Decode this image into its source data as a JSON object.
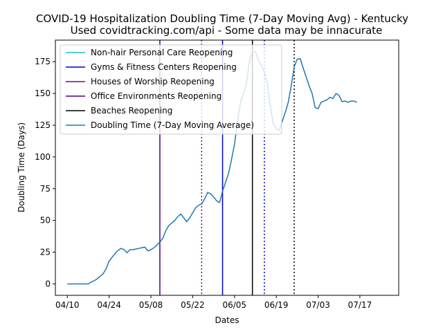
{
  "chart_data": {
    "type": "line",
    "title": "COVID-19 Hospitalization Doubling Time (7-Day Moving Avg) - Kentucky",
    "subtitle": "Used covidtracking.com/api - Some data may be innacurate",
    "xlabel": "Dates",
    "ylabel": "Doubling Time (Days)",
    "xlim": [
      "2020-04-06",
      "2020-07-30"
    ],
    "ylim": [
      -9,
      192
    ],
    "x_ticks": [
      "04/10",
      "04/24",
      "05/08",
      "05/22",
      "06/05",
      "06/19",
      "07/03",
      "07/17"
    ],
    "x_tick_dates": [
      "2020-04-10",
      "2020-04-24",
      "2020-05-08",
      "2020-05-22",
      "2020-06-05",
      "2020-06-19",
      "2020-07-03",
      "2020-07-17"
    ],
    "y_ticks": [
      0,
      25,
      50,
      75,
      100,
      125,
      150,
      175
    ],
    "grid": false,
    "legend_position": "upper-left",
    "legend": [
      {
        "label": "Non-hair Personal Care Reopening",
        "color": "#17becf",
        "style": "solid"
      },
      {
        "label": "Gyms & Fitness Centers Reopening",
        "color": "#0000cd",
        "style": "solid"
      },
      {
        "label": "Houses of Worship Reopening",
        "color": "#800080",
        "style": "solid"
      },
      {
        "label": "Office Environments Reopening",
        "color": "#4b0082",
        "style": "solid"
      },
      {
        "label": "Beaches Reopening",
        "color": "#000000",
        "style": "solid"
      },
      {
        "label": "Doubling Time (7-Day Moving Average)",
        "color": "#1f77b4",
        "style": "solid"
      }
    ],
    "vlines": [
      {
        "date": "2020-05-11",
        "color": "#4b0082",
        "style": "solid"
      },
      {
        "date": "2020-05-25",
        "color": "#800080",
        "style": "dotted"
      },
      {
        "date": "2020-06-01",
        "color": "#0000cd",
        "style": "solid"
      },
      {
        "date": "2020-06-11",
        "color": "#000000",
        "style": "solid"
      },
      {
        "date": "2020-06-15",
        "color": "#0000cd",
        "style": "dotted"
      },
      {
        "date": "2020-06-25",
        "color": "#000000",
        "style": "dotted"
      }
    ],
    "series": [
      {
        "name": "Doubling Time (7-Day Moving Average)",
        "color": "#1f77b4",
        "points": [
          [
            "2020-04-10",
            0
          ],
          [
            "2020-04-11",
            0
          ],
          [
            "2020-04-12",
            0
          ],
          [
            "2020-04-13",
            0
          ],
          [
            "2020-04-14",
            0
          ],
          [
            "2020-04-15",
            0
          ],
          [
            "2020-04-16",
            0
          ],
          [
            "2020-04-17",
            0
          ],
          [
            "2020-04-18",
            1.5
          ],
          [
            "2020-04-19",
            2.5
          ],
          [
            "2020-04-20",
            4
          ],
          [
            "2020-04-21",
            6
          ],
          [
            "2020-04-22",
            8
          ],
          [
            "2020-04-23",
            12
          ],
          [
            "2020-04-24",
            18
          ],
          [
            "2020-04-25",
            21
          ],
          [
            "2020-04-26",
            24
          ],
          [
            "2020-04-27",
            26.5
          ],
          [
            "2020-04-28",
            28
          ],
          [
            "2020-04-29",
            27
          ],
          [
            "2020-04-30",
            24.5
          ],
          [
            "2020-05-01",
            27
          ],
          [
            "2020-05-02",
            27
          ],
          [
            "2020-05-03",
            27.5
          ],
          [
            "2020-05-04",
            28
          ],
          [
            "2020-05-05",
            28.5
          ],
          [
            "2020-05-06",
            29
          ],
          [
            "2020-05-07",
            26
          ],
          [
            "2020-05-08",
            27
          ],
          [
            "2020-05-09",
            28.5
          ],
          [
            "2020-05-10",
            30.5
          ],
          [
            "2020-05-11",
            33
          ],
          [
            "2020-05-12",
            36
          ],
          [
            "2020-05-13",
            42
          ],
          [
            "2020-05-14",
            46
          ],
          [
            "2020-05-15",
            48
          ],
          [
            "2020-05-16",
            50
          ],
          [
            "2020-05-17",
            53
          ],
          [
            "2020-05-18",
            55
          ],
          [
            "2020-05-19",
            52
          ],
          [
            "2020-05-20",
            49
          ],
          [
            "2020-05-21",
            52
          ],
          [
            "2020-05-22",
            56
          ],
          [
            "2020-05-23",
            60
          ],
          [
            "2020-05-24",
            62
          ],
          [
            "2020-05-25",
            63
          ],
          [
            "2020-05-26",
            67
          ],
          [
            "2020-05-27",
            72
          ],
          [
            "2020-05-28",
            71
          ],
          [
            "2020-05-29",
            68.5
          ],
          [
            "2020-05-30",
            65.5
          ],
          [
            "2020-05-31",
            64
          ],
          [
            "2020-06-01",
            73
          ],
          [
            "2020-06-02",
            80
          ],
          [
            "2020-06-03",
            87
          ],
          [
            "2020-06-04",
            98
          ],
          [
            "2020-06-05",
            110
          ],
          [
            "2020-06-06",
            128
          ],
          [
            "2020-06-07",
            143
          ],
          [
            "2020-06-08",
            150
          ],
          [
            "2020-06-09",
            158
          ],
          [
            "2020-06-10",
            175
          ],
          [
            "2020-06-11",
            183
          ],
          [
            "2020-06-12",
            183
          ],
          [
            "2020-06-13",
            176
          ],
          [
            "2020-06-14",
            172
          ],
          [
            "2020-06-15",
            167
          ],
          [
            "2020-06-16",
            158
          ],
          [
            "2020-06-17",
            140
          ],
          [
            "2020-06-18",
            126
          ],
          [
            "2020-06-19",
            122
          ],
          [
            "2020-06-20",
            121
          ],
          [
            "2020-06-21",
            128
          ],
          [
            "2020-06-22",
            135
          ],
          [
            "2020-06-23",
            143
          ],
          [
            "2020-06-24",
            156
          ],
          [
            "2020-06-25",
            171
          ],
          [
            "2020-06-26",
            177
          ],
          [
            "2020-06-27",
            177.5
          ],
          [
            "2020-06-28",
            170
          ],
          [
            "2020-06-29",
            163
          ],
          [
            "2020-06-30",
            156
          ],
          [
            "2020-07-01",
            150
          ],
          [
            "2020-07-02",
            139
          ],
          [
            "2020-07-03",
            138
          ],
          [
            "2020-07-04",
            143
          ],
          [
            "2020-07-05",
            144
          ],
          [
            "2020-07-06",
            145
          ],
          [
            "2020-07-07",
            147
          ],
          [
            "2020-07-08",
            146
          ],
          [
            "2020-07-09",
            150
          ],
          [
            "2020-07-10",
            148.5
          ],
          [
            "2020-07-11",
            143.5
          ],
          [
            "2020-07-12",
            144
          ],
          [
            "2020-07-13",
            143
          ],
          [
            "2020-07-14",
            144
          ],
          [
            "2020-07-15",
            144
          ],
          [
            "2020-07-16",
            143
          ]
        ]
      }
    ]
  }
}
